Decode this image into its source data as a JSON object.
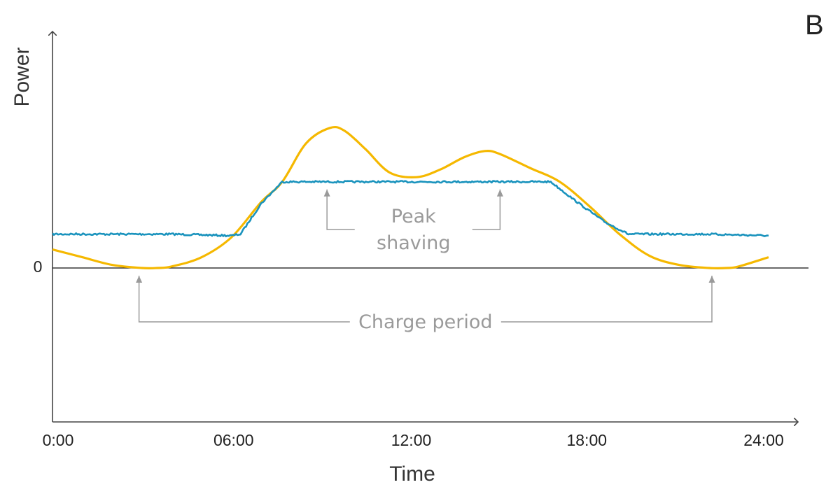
{
  "panel_label": "B",
  "chart_data": {
    "type": "line",
    "xlabel": "Time",
    "ylabel": "Power",
    "x_ticks": [
      "0:00",
      "06:00",
      "12:00",
      "18:00",
      "24:00"
    ],
    "y_ticks": [
      "0"
    ],
    "xlim": [
      0,
      24
    ],
    "ylim": [
      -1.0,
      1.42
    ],
    "grid": false,
    "series": [
      {
        "color": "#f5b800",
        "x": [
          0,
          1,
          2,
          3,
          3.5,
          4,
          5,
          6,
          7,
          7.7,
          8.5,
          9.3,
          9.8,
          10.5,
          11.3,
          12.2,
          13,
          13.8,
          14.5,
          15,
          16,
          17,
          18,
          19,
          20,
          21,
          22,
          22.6,
          23,
          24
        ],
        "values": [
          0.12,
          0.07,
          0.02,
          0.0,
          0.0,
          0.01,
          0.07,
          0.2,
          0.43,
          0.56,
          0.81,
          0.91,
          0.89,
          0.77,
          0.62,
          0.59,
          0.64,
          0.72,
          0.76,
          0.74,
          0.65,
          0.56,
          0.4,
          0.22,
          0.08,
          0.02,
          0.0,
          0.0,
          0.01,
          0.07
        ]
      },
      {
        "color": "#1a93bd",
        "x": [
          0,
          2,
          4,
          6,
          6.3,
          7,
          7.7,
          9,
          12,
          15,
          16.7,
          17.5,
          18.5,
          19.3,
          20,
          22,
          24
        ],
        "values": [
          0.22,
          0.22,
          0.22,
          0.21,
          0.22,
          0.42,
          0.56,
          0.56,
          0.56,
          0.56,
          0.56,
          0.44,
          0.3,
          0.22,
          0.22,
          0.22,
          0.21
        ]
      }
    ],
    "annotations": [
      {
        "text": [
          "Peak",
          "shaving"
        ],
        "arrows_to_x": [
          9.2,
          15.0
        ],
        "arrows_to_y": 0.51,
        "bracket_y": 0.25
      },
      {
        "text": [
          "Charge period"
        ],
        "arrows_to_x": [
          2.9,
          22.1
        ],
        "arrows_to_y": -0.05,
        "bracket_y": -0.35
      }
    ]
  }
}
